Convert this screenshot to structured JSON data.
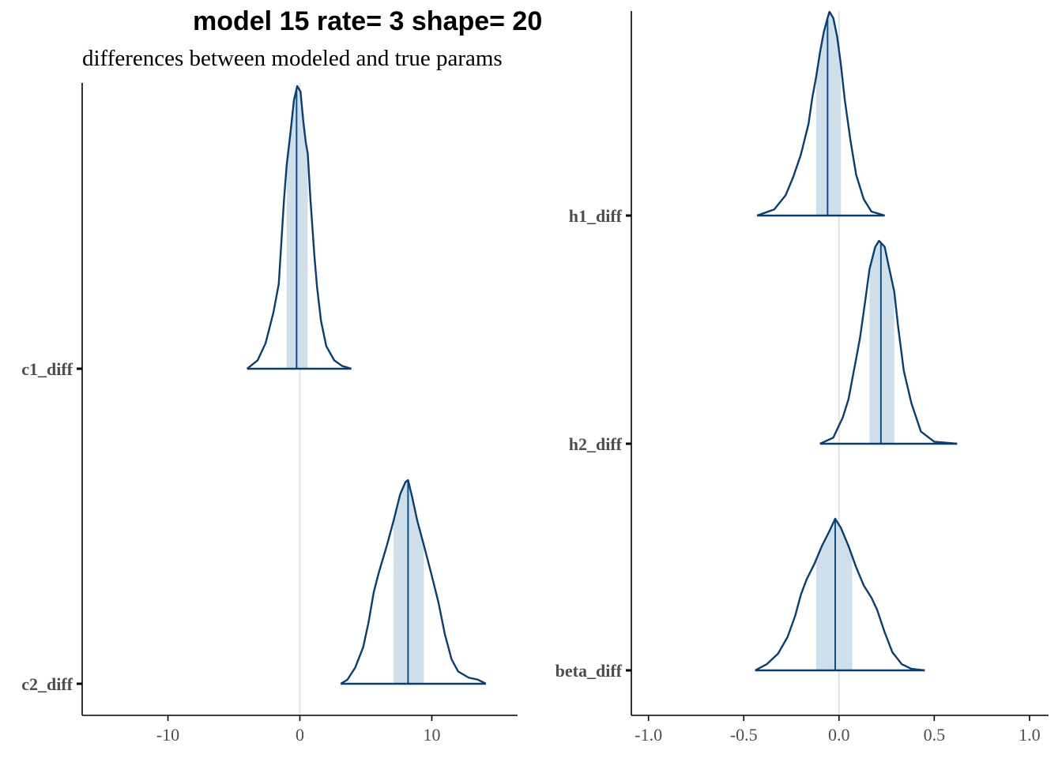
{
  "title": "model 15 rate= 3 shape= 20",
  "subtitle": "differences between modeled and true params",
  "colors": {
    "density_line": "#0b3d6e",
    "interval_fill": "#cfe0ec",
    "median_line": "#0b4f87",
    "zero_line": "#e3e3e3",
    "axis": "#000000",
    "text": "#4d4d4d"
  },
  "chart_data": [
    {
      "type": "area",
      "title": "",
      "xlabel": "",
      "ylabel": "",
      "xlim": [
        -16.5,
        16.5
      ],
      "x_ticks": [
        "-10",
        "0",
        "10"
      ],
      "x_tick_values": [
        -10,
        0,
        10
      ],
      "categories": [
        "c1_diff",
        "c2_diff"
      ],
      "zero_line": 0,
      "grid": false,
      "series": [
        {
          "name": "c1_diff",
          "median": -0.25,
          "interval": [
            -1.0,
            0.6
          ],
          "range": [
            -4.0,
            3.9
          ],
          "density": [
            [
              -4.0,
              0.0
            ],
            [
              -3.2,
              0.03
            ],
            [
              -2.6,
              0.09
            ],
            [
              -2.0,
              0.2
            ],
            [
              -1.6,
              0.3
            ],
            [
              -1.4,
              0.45
            ],
            [
              -1.2,
              0.6
            ],
            [
              -1.0,
              0.72
            ],
            [
              -0.7,
              0.84
            ],
            [
              -0.45,
              0.95
            ],
            [
              -0.2,
              1.0
            ],
            [
              0.05,
              0.98
            ],
            [
              0.25,
              0.88
            ],
            [
              0.45,
              0.8
            ],
            [
              0.6,
              0.76
            ],
            [
              0.8,
              0.6
            ],
            [
              1.1,
              0.4
            ],
            [
              1.3,
              0.29
            ],
            [
              1.6,
              0.17
            ],
            [
              2.0,
              0.08
            ],
            [
              2.6,
              0.03
            ],
            [
              3.2,
              0.01
            ],
            [
              3.9,
              0.0
            ]
          ]
        },
        {
          "name": "c2_diff",
          "median": 8.2,
          "interval": [
            7.1,
            9.4
          ],
          "range": [
            3.1,
            14.1
          ],
          "density": [
            [
              3.1,
              0.0
            ],
            [
              3.6,
              0.02
            ],
            [
              4.2,
              0.08
            ],
            [
              4.8,
              0.18
            ],
            [
              5.2,
              0.3
            ],
            [
              5.6,
              0.45
            ],
            [
              6.0,
              0.55
            ],
            [
              6.6,
              0.68
            ],
            [
              7.1,
              0.8
            ],
            [
              7.6,
              0.93
            ],
            [
              8.0,
              0.99
            ],
            [
              8.2,
              1.0
            ],
            [
              8.5,
              0.92
            ],
            [
              8.9,
              0.8
            ],
            [
              9.4,
              0.68
            ],
            [
              10.0,
              0.53
            ],
            [
              10.5,
              0.4
            ],
            [
              11.0,
              0.24
            ],
            [
              11.5,
              0.12
            ],
            [
              12.0,
              0.06
            ],
            [
              12.8,
              0.03
            ],
            [
              13.5,
              0.02
            ],
            [
              14.1,
              0.0
            ]
          ]
        }
      ]
    },
    {
      "type": "area",
      "title": "",
      "xlabel": "",
      "ylabel": "",
      "xlim": [
        -1.09,
        1.1
      ],
      "x_ticks": [
        "-1.0",
        "-0.5",
        "0.0",
        "0.5",
        "1.0"
      ],
      "x_tick_values": [
        -1.0,
        -0.5,
        0.0,
        0.5,
        1.0
      ],
      "categories": [
        "h1_diff",
        "h2_diff",
        "beta_diff"
      ],
      "zero_line": 0,
      "grid": false,
      "series": [
        {
          "name": "h1_diff",
          "median": -0.06,
          "interval": [
            -0.12,
            0.01
          ],
          "range": [
            -0.43,
            0.24
          ],
          "density": [
            [
              -0.43,
              0.0
            ],
            [
              -0.34,
              0.03
            ],
            [
              -0.28,
              0.1
            ],
            [
              -0.24,
              0.19
            ],
            [
              -0.2,
              0.3
            ],
            [
              -0.16,
              0.45
            ],
            [
              -0.14,
              0.58
            ],
            [
              -0.12,
              0.68
            ],
            [
              -0.1,
              0.8
            ],
            [
              -0.08,
              0.9
            ],
            [
              -0.06,
              0.97
            ],
            [
              -0.05,
              1.0
            ],
            [
              -0.03,
              0.97
            ],
            [
              -0.01,
              0.88
            ],
            [
              0.01,
              0.74
            ],
            [
              0.03,
              0.57
            ],
            [
              0.06,
              0.37
            ],
            [
              0.09,
              0.2
            ],
            [
              0.13,
              0.08
            ],
            [
              0.17,
              0.02
            ],
            [
              0.24,
              0.0
            ]
          ]
        },
        {
          "name": "h2_diff",
          "median": 0.22,
          "interval": [
            0.16,
            0.29
          ],
          "range": [
            -0.1,
            0.62
          ],
          "density": [
            [
              -0.1,
              0.0
            ],
            [
              -0.03,
              0.03
            ],
            [
              0.02,
              0.13
            ],
            [
              0.05,
              0.22
            ],
            [
              0.08,
              0.37
            ],
            [
              0.11,
              0.52
            ],
            [
              0.14,
              0.72
            ],
            [
              0.16,
              0.86
            ],
            [
              0.19,
              0.97
            ],
            [
              0.21,
              1.0
            ],
            [
              0.24,
              0.97
            ],
            [
              0.26,
              0.88
            ],
            [
              0.29,
              0.75
            ],
            [
              0.31,
              0.58
            ],
            [
              0.34,
              0.36
            ],
            [
              0.38,
              0.2
            ],
            [
              0.43,
              0.06
            ],
            [
              0.5,
              0.01
            ],
            [
              0.62,
              0.0
            ]
          ]
        },
        {
          "name": "beta_diff",
          "median": -0.02,
          "interval": [
            -0.12,
            0.07
          ],
          "range": [
            -0.44,
            0.45
          ],
          "density": [
            [
              -0.44,
              0.0
            ],
            [
              -0.38,
              0.04
            ],
            [
              -0.32,
              0.11
            ],
            [
              -0.27,
              0.22
            ],
            [
              -0.23,
              0.36
            ],
            [
              -0.2,
              0.5
            ],
            [
              -0.17,
              0.6
            ],
            [
              -0.13,
              0.7
            ],
            [
              -0.09,
              0.82
            ],
            [
              -0.05,
              0.92
            ],
            [
              -0.02,
              1.0
            ],
            [
              0.01,
              0.94
            ],
            [
              0.05,
              0.82
            ],
            [
              0.09,
              0.68
            ],
            [
              0.13,
              0.56
            ],
            [
              0.17,
              0.48
            ],
            [
              0.2,
              0.4
            ],
            [
              0.24,
              0.25
            ],
            [
              0.28,
              0.12
            ],
            [
              0.33,
              0.04
            ],
            [
              0.38,
              0.01
            ],
            [
              0.45,
              0.0
            ]
          ]
        }
      ]
    }
  ]
}
